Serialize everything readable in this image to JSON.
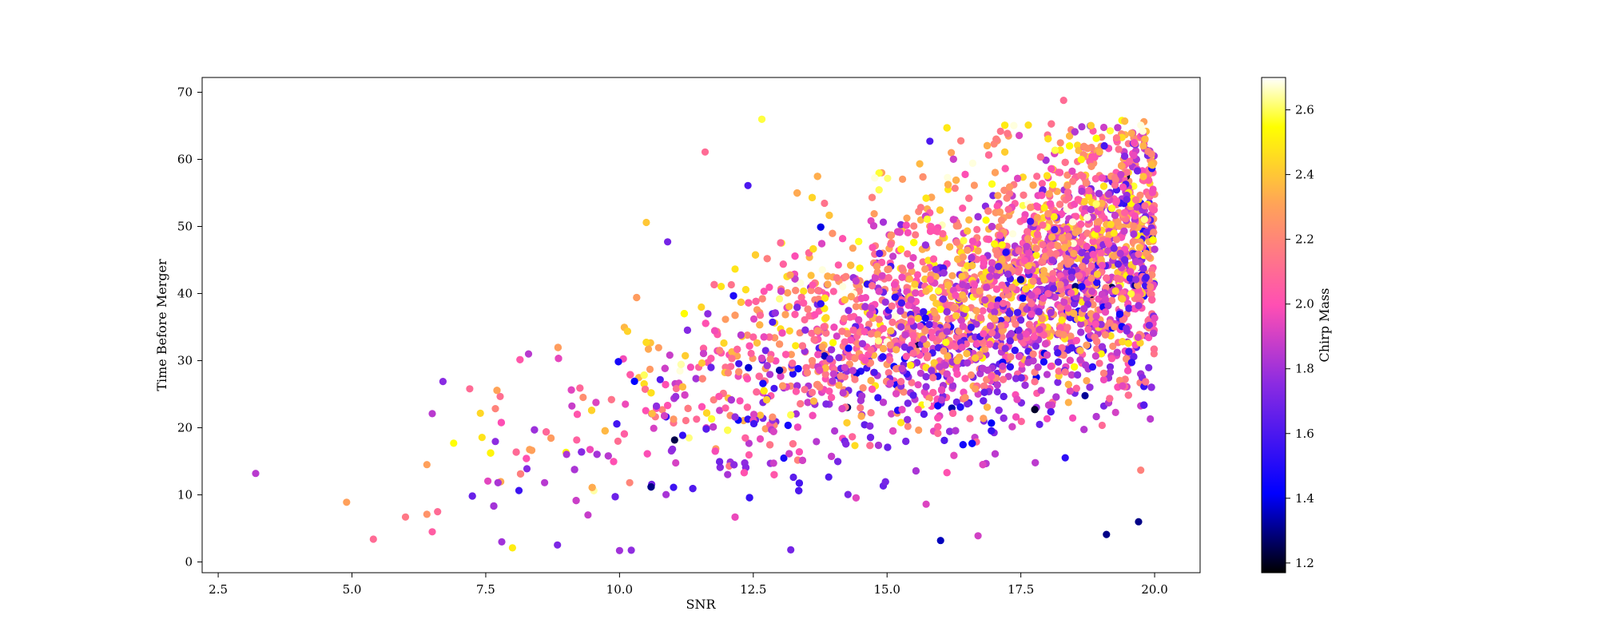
{
  "chart_data": {
    "type": "scatter",
    "xlabel": "SNR",
    "ylabel": "Time Before Merger",
    "xlim": [
      2.2,
      20.85
    ],
    "ylim": [
      -1.6,
      72.2
    ],
    "xticks": [
      "2.5",
      "5.0",
      "7.5",
      "10.0",
      "12.5",
      "15.0",
      "17.5",
      "20.0"
    ],
    "yticks": [
      "0",
      "10",
      "20",
      "30",
      "40",
      "50",
      "60",
      "70"
    ],
    "grid": false,
    "legend": "none",
    "colorbar": {
      "label": "Chirp Mass",
      "colormap": "plasma",
      "range": [
        1.17,
        2.7
      ],
      "ticks": [
        "1.2",
        "1.4",
        "1.6",
        "1.8",
        "2.0",
        "2.2",
        "2.4",
        "2.6"
      ]
    },
    "colormap_stops": [
      "#000000",
      "#0000ff",
      "#8a2be2",
      "#ff4fb3",
      "#ffa15a",
      "#ffff00",
      "#ffffff"
    ],
    "points_note_x_range": [
      3.2,
      20.0
    ],
    "points": [
      [
        3.2,
        13.2,
        1.85
      ],
      [
        4.9,
        8.9,
        2.3
      ],
      [
        5.4,
        3.4,
        2.1
      ],
      [
        6.0,
        6.7,
        2.15
      ],
      [
        6.4,
        7.1,
        2.25
      ],
      [
        6.5,
        4.5,
        2.05
      ],
      [
        6.5,
        22.1,
        1.85
      ],
      [
        6.6,
        7.5,
        2.1
      ],
      [
        6.7,
        26.9,
        1.75
      ],
      [
        6.9,
        17.7,
        2.55
      ],
      [
        7.2,
        25.8,
        2.1
      ],
      [
        6.4,
        14.5,
        2.3
      ],
      [
        7.8,
        3.0,
        1.8
      ],
      [
        8.0,
        2.1,
        2.5
      ],
      [
        8.3,
        31.0,
        1.85
      ],
      [
        11.6,
        61.1,
        2.1
      ],
      [
        12.4,
        56.1,
        1.6
      ],
      [
        10.5,
        50.6,
        2.4
      ],
      [
        10.9,
        47.7,
        1.7
      ],
      [
        18.3,
        68.8,
        2.1
      ],
      [
        18.8,
        65.0,
        1.6
      ],
      [
        19.8,
        65.6,
        2.3
      ],
      [
        15.8,
        62.7,
        1.6
      ],
      [
        17.0,
        62.3,
        2.2
      ],
      [
        16.2,
        61.0,
        2.3
      ],
      [
        14.9,
        58.0,
        2.3
      ],
      [
        19.1,
        4.1,
        1.3
      ],
      [
        19.7,
        6.0,
        1.3
      ],
      [
        16.0,
        3.2,
        1.35
      ],
      [
        16.7,
        3.9,
        1.9
      ],
      [
        13.2,
        1.8,
        1.7
      ],
      [
        10.0,
        1.7,
        1.8
      ]
    ]
  }
}
